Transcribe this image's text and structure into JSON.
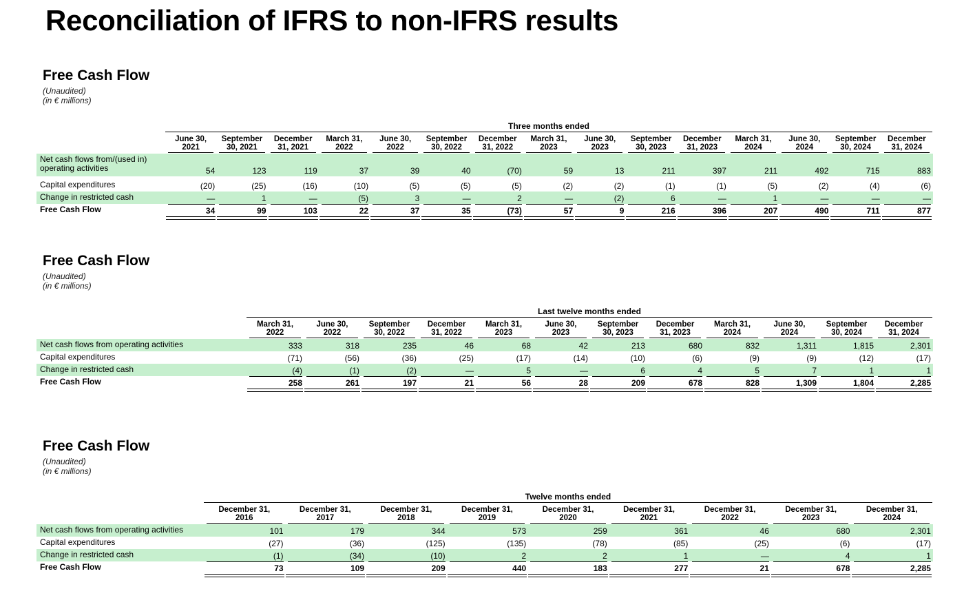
{
  "page_title": "Reconciliation of IFRS to non-IFRS results",
  "sections": [
    {
      "title": "Free Cash Flow",
      "note1": "(Unaudited)",
      "note2": "(in € millions)",
      "period": "Three months ended",
      "columns": [
        "June 30,\n2021",
        "September\n30, 2021",
        "December\n31, 2021",
        "March 31,\n2022",
        "June 30,\n2022",
        "September\n30, 2022",
        "December\n31, 2022",
        "March 31,\n2023",
        "June 30,\n2023",
        "September\n30, 2023",
        "December\n31, 2023",
        "March 31,\n2024",
        "June 30,\n2024",
        "September\n30, 2024",
        "December\n31, 2024"
      ],
      "rows": [
        {
          "label": "Net cash flows from/(used in)\noperating activities",
          "values": [
            "54",
            "123",
            "119",
            "37",
            "39",
            "40",
            "(70)",
            "59",
            "13",
            "211",
            "397",
            "211",
            "492",
            "715",
            "883"
          ]
        },
        {
          "label": "Capital expenditures",
          "values": [
            "(20)",
            "(25)",
            "(16)",
            "(10)",
            "(5)",
            "(5)",
            "(5)",
            "(2)",
            "(2)",
            "(1)",
            "(1)",
            "(5)",
            "(2)",
            "(4)",
            "(6)"
          ]
        },
        {
          "label": "Change in restricted cash",
          "values": [
            "—",
            "1",
            "—",
            "(5)",
            "3",
            "—",
            "2",
            "—",
            "(2)",
            "6",
            "—",
            "1",
            "—",
            "—",
            "—"
          ]
        },
        {
          "label": "Free Cash Flow",
          "values": [
            "34",
            "99",
            "103",
            "22",
            "37",
            "35",
            "(73)",
            "57",
            "9",
            "216",
            "396",
            "207",
            "490",
            "711",
            "877"
          ]
        }
      ]
    },
    {
      "title": "Free Cash Flow",
      "note1": "(Unaudited)",
      "note2": "(in € millions)",
      "period": "Last twelve months ended",
      "columns": [
        "March 31,\n2022",
        "June 30,\n2022",
        "September\n30, 2022",
        "December\n31, 2022",
        "March 31,\n2023",
        "June 30,\n2023",
        "September\n30, 2023",
        "December\n31, 2023",
        "March 31,\n2024",
        "June 30,\n2024",
        "September\n30, 2024",
        "December\n31, 2024"
      ],
      "rows": [
        {
          "label": "Net cash flows from operating activities",
          "values": [
            "333",
            "318",
            "235",
            "46",
            "68",
            "42",
            "213",
            "680",
            "832",
            "1,311",
            "1,815",
            "2,301"
          ]
        },
        {
          "label": "Capital expenditures",
          "values": [
            "(71)",
            "(56)",
            "(36)",
            "(25)",
            "(17)",
            "(14)",
            "(10)",
            "(6)",
            "(9)",
            "(9)",
            "(12)",
            "(17)"
          ]
        },
        {
          "label": "Change in restricted cash",
          "values": [
            "(4)",
            "(1)",
            "(2)",
            "—",
            "5",
            "—",
            "6",
            "4",
            "5",
            "7",
            "1",
            "1"
          ]
        },
        {
          "label": "Free Cash Flow",
          "values": [
            "258",
            "261",
            "197",
            "21",
            "56",
            "28",
            "209",
            "678",
            "828",
            "1,309",
            "1,804",
            "2,285"
          ]
        }
      ]
    },
    {
      "title": "Free Cash Flow",
      "note1": "(Unaudited)",
      "note2": "(in € millions)",
      "period": "Twelve months ended",
      "columns": [
        "December 31,\n2016",
        "December 31,\n2017",
        "December 31,\n2018",
        "December 31,\n2019",
        "December 31,\n2020",
        "December 31,\n2021",
        "December 31,\n2022",
        "December 31,\n2023",
        "December 31,\n2024"
      ],
      "rows": [
        {
          "label": "Net cash flows from operating activities",
          "values": [
            "101",
            "179",
            "344",
            "573",
            "259",
            "361",
            "46",
            "680",
            "2,301"
          ]
        },
        {
          "label": "Capital expenditures",
          "values": [
            "(27)",
            "(36)",
            "(125)",
            "(135)",
            "(78)",
            "(85)",
            "(25)",
            "(6)",
            "(17)"
          ]
        },
        {
          "label": "Change in restricted cash",
          "values": [
            "(1)",
            "(34)",
            "(10)",
            "2",
            "2",
            "1",
            "—",
            "4",
            "1"
          ]
        },
        {
          "label": "Free Cash Flow",
          "values": [
            "73",
            "109",
            "209",
            "440",
            "183",
            "277",
            "21",
            "678",
            "2,285"
          ]
        }
      ]
    }
  ]
}
